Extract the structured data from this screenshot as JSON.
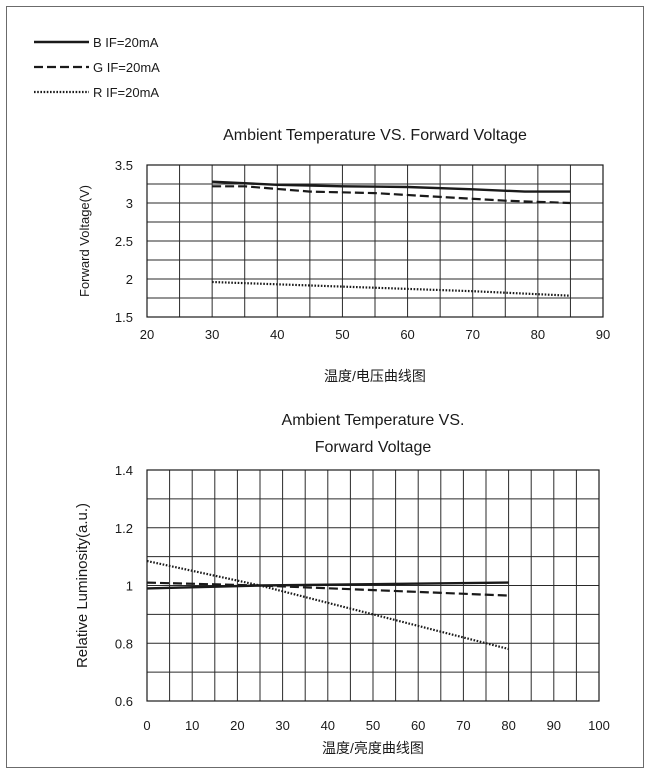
{
  "legend": [
    {
      "label": "B  IF=20mA",
      "style": "solid"
    },
    {
      "label": "G  IF=20mA",
      "style": "dashed"
    },
    {
      "label": "R  IF=20mA",
      "style": "dotted"
    }
  ],
  "chart_data": [
    {
      "type": "line",
      "title": "Ambient Temperature VS. Forward Voltage",
      "xlabel": "温度/电压曲线图",
      "ylabel": "Forward Voltage(V)",
      "xlim": [
        20,
        90
      ],
      "ylim": [
        1.5,
        3.5
      ],
      "xticks": [
        "20",
        "30",
        "40",
        "50",
        "60",
        "70",
        "80",
        "90"
      ],
      "yticks": [
        "1.5",
        "2",
        "2.5",
        "3",
        "3.5"
      ],
      "grid": true,
      "legend_position": "top-left",
      "series": [
        {
          "name": "B  IF=20mA",
          "style": "solid",
          "x": [
            30,
            40,
            50,
            60,
            70,
            78,
            85
          ],
          "y": [
            3.28,
            3.24,
            3.22,
            3.21,
            3.18,
            3.15,
            3.15
          ]
        },
        {
          "name": "G  IF=20mA",
          "style": "dashed",
          "x": [
            30,
            35,
            45,
            55,
            65,
            75,
            85
          ],
          "y": [
            3.22,
            3.22,
            3.15,
            3.13,
            3.08,
            3.03,
            3.0
          ]
        },
        {
          "name": "R  IF=20mA",
          "style": "dotted",
          "x": [
            30,
            40,
            50,
            60,
            70,
            85
          ],
          "y": [
            1.96,
            1.93,
            1.9,
            1.87,
            1.84,
            1.78
          ]
        }
      ]
    },
    {
      "type": "line",
      "title": "Ambient Temperature VS.",
      "title_line2": "Forward Voltage",
      "xlabel": "温度/亮度曲线图",
      "ylabel": "Relative Luminosity(a.u.)",
      "xlim": [
        0,
        100
      ],
      "ylim": [
        0.6,
        1.4
      ],
      "xticks": [
        "0",
        "10",
        "20",
        "30",
        "40",
        "50",
        "60",
        "70",
        "80",
        "90",
        "100"
      ],
      "yticks": [
        "0.6",
        "0.8",
        "1",
        "1.2",
        "1.4"
      ],
      "grid": true,
      "series": [
        {
          "name": "B  IF=20mA",
          "style": "solid",
          "x": [
            0,
            25,
            80
          ],
          "y": [
            0.99,
            1.0,
            1.01
          ]
        },
        {
          "name": "G  IF=20mA",
          "style": "dashed",
          "x": [
            0,
            25,
            80
          ],
          "y": [
            1.01,
            1.0,
            0.965
          ]
        },
        {
          "name": "R  IF=20mA",
          "style": "dotted",
          "x": [
            0,
            25,
            80
          ],
          "y": [
            1.085,
            1.0,
            0.78
          ]
        }
      ]
    }
  ]
}
